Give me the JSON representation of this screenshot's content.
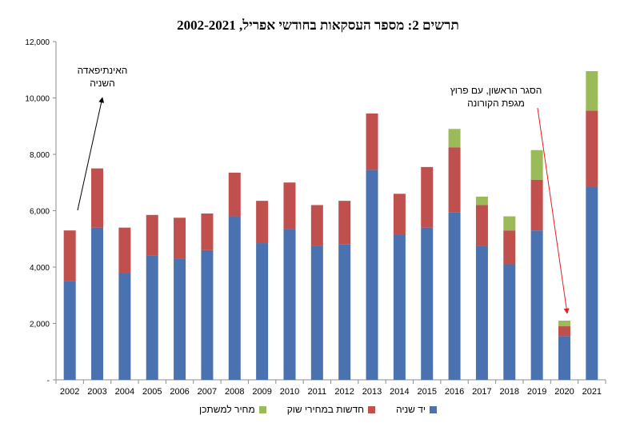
{
  "chart_data": {
    "type": "bar",
    "stacked": true,
    "title": "תרשים 2: מספר העסקאות בחודשי אפריל, 2002-2021",
    "categories": [
      "2002",
      "2003",
      "2004",
      "2005",
      "2006",
      "2007",
      "2008",
      "2009",
      "2010",
      "2011",
      "2012",
      "2013",
      "2014",
      "2015",
      "2016",
      "2017",
      "2018",
      "2019",
      "2020",
      "2021"
    ],
    "series": [
      {
        "name": "יד שניה",
        "color": "#4a72b0",
        "values": [
          3500,
          5400,
          3800,
          4400,
          4300,
          4600,
          5800,
          4850,
          5350,
          4750,
          4800,
          7450,
          5150,
          5400,
          5950,
          4750,
          4100,
          5300,
          1550,
          6850
        ]
      },
      {
        "name": "חדשות במחירי שוק",
        "color": "#c0504d",
        "values": [
          1800,
          2100,
          1600,
          1450,
          1450,
          1300,
          1550,
          1500,
          1650,
          1450,
          1550,
          2000,
          1450,
          2150,
          2300,
          1450,
          1200,
          1800,
          350,
          2700
        ]
      },
      {
        "name": "מחיר למשתכן",
        "color": "#9bbb59",
        "values": [
          0,
          0,
          0,
          0,
          0,
          0,
          0,
          0,
          0,
          0,
          0,
          0,
          0,
          0,
          650,
          300,
          500,
          1050,
          200,
          1400
        ]
      }
    ],
    "ylim": [
      0,
      12000
    ],
    "yticks": [
      "-",
      "2,000",
      "4,000",
      "6,000",
      "8,000",
      "10,000",
      "12,000"
    ],
    "grid": false,
    "legend_position": "bottom",
    "annotations": [
      {
        "lines": [
          "האינתיפאדה",
          "השניה"
        ],
        "target": "2002"
      },
      {
        "lines": [
          "הסגר הראשון, עם פרוץ",
          "מגפת הקורונה"
        ],
        "target": "2020"
      }
    ]
  }
}
